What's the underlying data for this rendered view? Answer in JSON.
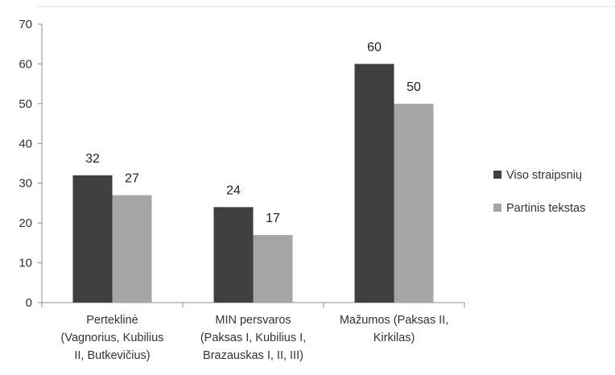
{
  "chart_data": {
    "type": "bar",
    "title": "",
    "xlabel": "",
    "ylabel": "",
    "ylim": [
      0,
      70
    ],
    "yticks": [
      0,
      10,
      20,
      30,
      40,
      50,
      60,
      70
    ],
    "grid": false,
    "legend_position": "right",
    "categories": [
      [
        "Perteklinė",
        "(Vagnorius, Kubilius",
        "II, Butkevičius)"
      ],
      [
        "MIN persvaros",
        "(Paksas I, Kubilius I,",
        "Brazauskas I, II, III)"
      ],
      [
        "Mažumos (Paksas II,",
        "Kirkilas)"
      ]
    ],
    "series": [
      {
        "name": "Viso straipsnių",
        "values": [
          32,
          24,
          60
        ],
        "color": "#3f3f3f"
      },
      {
        "name": "Partinis tekstas",
        "values": [
          27,
          17,
          50
        ],
        "color": "#a6a6a6"
      }
    ],
    "data_labels": true
  }
}
